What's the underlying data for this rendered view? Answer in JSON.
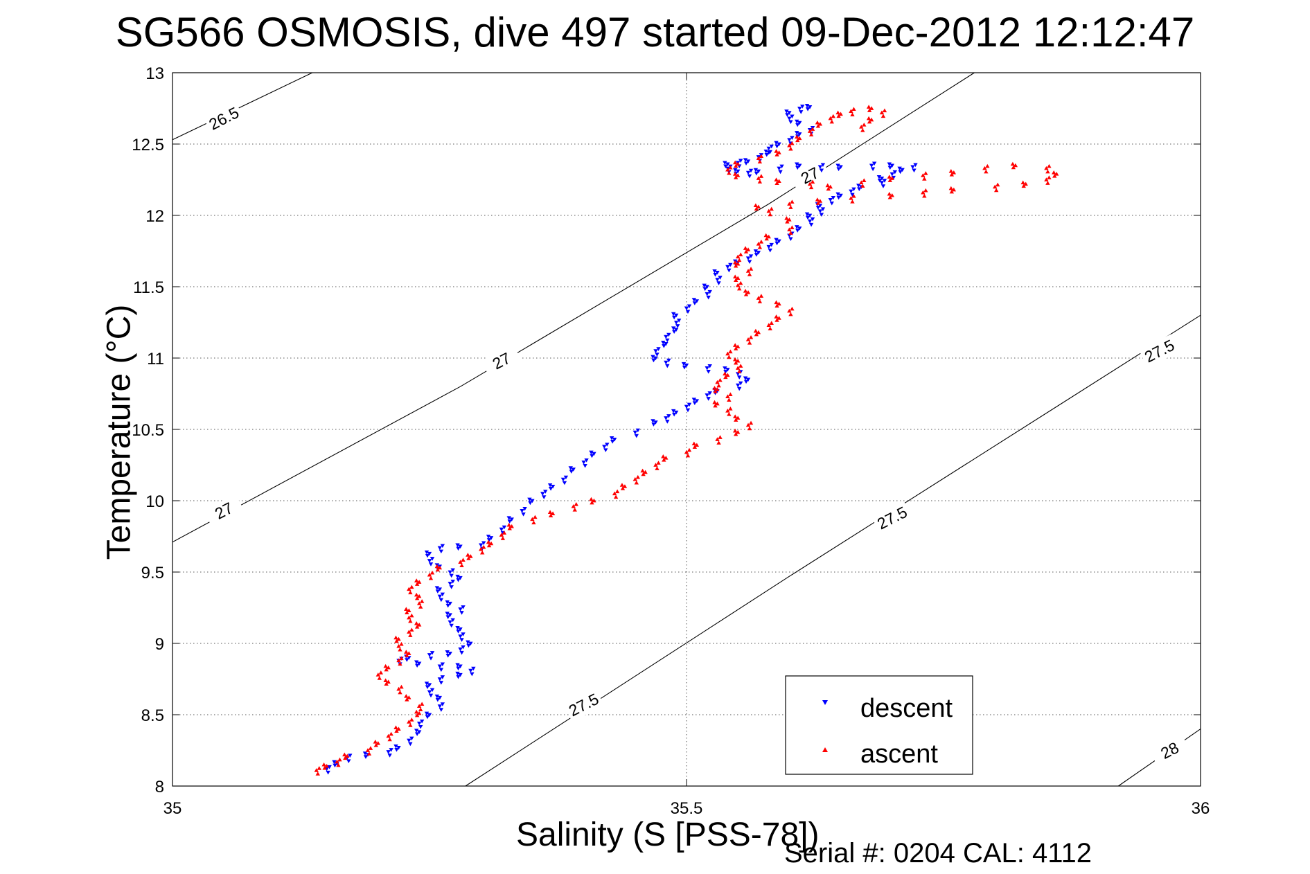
{
  "chart_data": {
    "type": "scatter",
    "title": "SG566 OSMOSIS, dive 497 started 09-Dec-2012 12:12:47",
    "xlabel": "Salinity (S [PSS-78])",
    "ylabel": "Temperature (°C)",
    "footer": "Serial #: 0204  CAL: 4112",
    "xlim": [
      35,
      36
    ],
    "ylim": [
      8,
      13
    ],
    "x_ticks": [
      35,
      35.5,
      36
    ],
    "x_tick_labels": [
      "35",
      "35.5",
      "36"
    ],
    "y_ticks": [
      8,
      8.5,
      9,
      9.5,
      10,
      10.5,
      11,
      11.5,
      12,
      12.5,
      13
    ],
    "y_tick_labels": [
      "8",
      "8.5",
      "9",
      "9.5",
      "10",
      "10.5",
      "11",
      "11.5",
      "12",
      "12.5",
      "13"
    ],
    "grid": true,
    "legend_position": "bottom-right",
    "isopycnals": [
      {
        "label": "26.5",
        "points": [
          [
            35.0,
            12.53
          ],
          [
            35.136,
            13.0
          ]
        ],
        "label_positions": [
          [
            35.05,
            12.68
          ]
        ]
      },
      {
        "label": "27",
        "points": [
          [
            35.0,
            9.71
          ],
          [
            35.28,
            10.8
          ],
          [
            35.58,
            12.08
          ],
          [
            35.78,
            13.0
          ]
        ],
        "label_positions": [
          [
            35.05,
            9.93
          ],
          [
            35.32,
            10.98
          ],
          [
            35.62,
            12.28
          ]
        ]
      },
      {
        "label": "27.5",
        "points": [
          [
            35.285,
            8.0
          ],
          [
            35.6,
            9.47
          ],
          [
            36.0,
            11.3
          ]
        ],
        "label_positions": [
          [
            35.4,
            8.57
          ],
          [
            35.7,
            9.88
          ],
          [
            35.96,
            11.05
          ]
        ]
      },
      {
        "label": "28",
        "points": [
          [
            35.92,
            8.0
          ],
          [
            36.0,
            8.4
          ]
        ],
        "label_positions": [
          [
            35.97,
            8.25
          ]
        ]
      }
    ],
    "series": [
      {
        "name": "descent",
        "color": "#0000ff",
        "marker": "triangle-down",
        "points": [
          [
            35.62,
            12.76
          ],
          [
            35.61,
            12.75
          ],
          [
            35.6,
            12.72
          ],
          [
            35.6,
            12.68
          ],
          [
            35.61,
            12.65
          ],
          [
            35.62,
            12.6
          ],
          [
            35.61,
            12.57
          ],
          [
            35.6,
            12.53
          ],
          [
            35.59,
            12.5
          ],
          [
            35.58,
            12.47
          ],
          [
            35.58,
            12.44
          ],
          [
            35.57,
            12.41
          ],
          [
            35.56,
            12.38
          ],
          [
            35.55,
            12.37
          ],
          [
            35.54,
            12.36
          ],
          [
            35.54,
            12.33
          ],
          [
            35.55,
            12.31
          ],
          [
            35.56,
            12.3
          ],
          [
            35.57,
            12.31
          ],
          [
            35.59,
            12.33
          ],
          [
            35.61,
            12.35
          ],
          [
            35.63,
            12.34
          ],
          [
            35.65,
            12.34
          ],
          [
            35.68,
            12.35
          ],
          [
            35.7,
            12.35
          ],
          [
            35.72,
            12.34
          ],
          [
            35.71,
            12.32
          ],
          [
            35.7,
            12.29
          ],
          [
            35.69,
            12.26
          ],
          [
            35.69,
            12.23
          ],
          [
            35.67,
            12.2
          ],
          [
            35.66,
            12.17
          ],
          [
            35.65,
            12.14
          ],
          [
            35.64,
            12.11
          ],
          [
            35.63,
            12.07
          ],
          [
            35.63,
            12.03
          ],
          [
            35.62,
            12.0
          ],
          [
            35.62,
            11.96
          ],
          [
            35.61,
            11.91
          ],
          [
            35.6,
            11.86
          ],
          [
            35.59,
            11.82
          ],
          [
            35.58,
            11.78
          ],
          [
            35.57,
            11.74
          ],
          [
            35.56,
            11.7
          ],
          [
            35.55,
            11.67
          ],
          [
            35.54,
            11.64
          ],
          [
            35.53,
            11.6
          ],
          [
            35.53,
            11.55
          ],
          [
            35.52,
            11.5
          ],
          [
            35.52,
            11.45
          ],
          [
            35.51,
            11.4
          ],
          [
            35.5,
            11.35
          ],
          [
            35.49,
            11.3
          ],
          [
            35.49,
            11.25
          ],
          [
            35.49,
            11.2
          ],
          [
            35.48,
            11.15
          ],
          [
            35.48,
            11.1
          ],
          [
            35.47,
            11.05
          ],
          [
            35.47,
            11.0
          ],
          [
            35.48,
            10.97
          ],
          [
            35.5,
            10.95
          ],
          [
            35.52,
            10.93
          ],
          [
            35.54,
            10.92
          ],
          [
            35.55,
            10.89
          ],
          [
            35.56,
            10.85
          ],
          [
            35.55,
            10.81
          ],
          [
            35.53,
            10.77
          ],
          [
            35.52,
            10.74
          ],
          [
            35.51,
            10.7
          ],
          [
            35.5,
            10.66
          ],
          [
            35.49,
            10.62
          ],
          [
            35.48,
            10.58
          ],
          [
            35.47,
            10.55
          ],
          [
            35.45,
            10.48
          ],
          [
            35.43,
            10.43
          ],
          [
            35.42,
            10.38
          ],
          [
            35.41,
            10.33
          ],
          [
            35.4,
            10.27
          ],
          [
            35.39,
            10.22
          ],
          [
            35.38,
            10.15
          ],
          [
            35.37,
            10.1
          ],
          [
            35.36,
            10.05
          ],
          [
            35.35,
            10.0
          ],
          [
            35.34,
            9.93
          ],
          [
            35.33,
            9.87
          ],
          [
            35.32,
            9.8
          ],
          [
            35.31,
            9.74
          ],
          [
            35.3,
            9.69
          ],
          [
            35.28,
            9.68
          ],
          [
            35.26,
            9.67
          ],
          [
            35.25,
            9.63
          ],
          [
            35.25,
            9.58
          ],
          [
            35.26,
            9.54
          ],
          [
            35.27,
            9.5
          ],
          [
            35.28,
            9.46
          ],
          [
            35.27,
            9.42
          ],
          [
            35.26,
            9.38
          ],
          [
            35.26,
            9.33
          ],
          [
            35.27,
            9.28
          ],
          [
            35.28,
            9.24
          ],
          [
            35.27,
            9.2
          ],
          [
            35.27,
            9.15
          ],
          [
            35.28,
            9.1
          ],
          [
            35.28,
            9.05
          ],
          [
            35.29,
            9.0
          ],
          [
            35.28,
            8.96
          ],
          [
            35.27,
            8.93
          ],
          [
            35.25,
            8.92
          ],
          [
            35.23,
            8.9
          ],
          [
            35.22,
            8.88
          ],
          [
            35.24,
            8.86
          ],
          [
            35.26,
            8.84
          ],
          [
            35.28,
            8.84
          ],
          [
            35.29,
            8.81
          ],
          [
            35.28,
            8.78
          ],
          [
            35.26,
            8.75
          ],
          [
            35.25,
            8.71
          ],
          [
            35.25,
            8.66
          ],
          [
            35.26,
            8.62
          ],
          [
            35.26,
            8.56
          ],
          [
            35.25,
            8.5
          ],
          [
            35.24,
            8.44
          ],
          [
            35.24,
            8.38
          ],
          [
            35.23,
            8.32
          ],
          [
            35.22,
            8.27
          ],
          [
            35.21,
            8.24
          ],
          [
            35.19,
            8.22
          ],
          [
            35.17,
            8.2
          ],
          [
            35.16,
            8.16
          ],
          [
            35.15,
            8.12
          ]
        ]
      },
      {
        "name": "ascent",
        "color": "#ff0000",
        "marker": "triangle-up",
        "points": [
          [
            35.14,
            8.11
          ],
          [
            35.15,
            8.14
          ],
          [
            35.16,
            8.17
          ],
          [
            35.17,
            8.21
          ],
          [
            35.19,
            8.25
          ],
          [
            35.2,
            8.3
          ],
          [
            35.21,
            8.35
          ],
          [
            35.22,
            8.4
          ],
          [
            35.23,
            8.45
          ],
          [
            35.24,
            8.51
          ],
          [
            35.24,
            8.56
          ],
          [
            35.23,
            8.62
          ],
          [
            35.22,
            8.68
          ],
          [
            35.21,
            8.73
          ],
          [
            35.2,
            8.78
          ],
          [
            35.21,
            8.83
          ],
          [
            35.22,
            8.88
          ],
          [
            35.23,
            8.93
          ],
          [
            35.22,
            8.98
          ],
          [
            35.22,
            9.03
          ],
          [
            35.23,
            9.08
          ],
          [
            35.24,
            9.13
          ],
          [
            35.23,
            9.18
          ],
          [
            35.23,
            9.23
          ],
          [
            35.24,
            9.28
          ],
          [
            35.24,
            9.33
          ],
          [
            35.23,
            9.38
          ],
          [
            35.24,
            9.43
          ],
          [
            35.25,
            9.48
          ],
          [
            35.26,
            9.53
          ],
          [
            35.28,
            9.57
          ],
          [
            35.29,
            9.61
          ],
          [
            35.3,
            9.66
          ],
          [
            35.31,
            9.7
          ],
          [
            35.32,
            9.76
          ],
          [
            35.33,
            9.82
          ],
          [
            35.35,
            9.87
          ],
          [
            35.37,
            9.91
          ],
          [
            35.39,
            9.96
          ],
          [
            35.41,
            10.0
          ],
          [
            35.43,
            10.05
          ],
          [
            35.44,
            10.1
          ],
          [
            35.45,
            10.15
          ],
          [
            35.46,
            10.2
          ],
          [
            35.47,
            10.25
          ],
          [
            35.48,
            10.3
          ],
          [
            35.5,
            10.34
          ],
          [
            35.51,
            10.39
          ],
          [
            35.53,
            10.43
          ],
          [
            35.55,
            10.48
          ],
          [
            35.56,
            10.53
          ],
          [
            35.55,
            10.58
          ],
          [
            35.54,
            10.63
          ],
          [
            35.53,
            10.68
          ],
          [
            35.54,
            10.73
          ],
          [
            35.53,
            10.78
          ],
          [
            35.53,
            10.83
          ],
          [
            35.54,
            10.88
          ],
          [
            35.55,
            10.93
          ],
          [
            35.55,
            10.98
          ],
          [
            35.54,
            11.03
          ],
          [
            35.55,
            11.08
          ],
          [
            35.56,
            11.13
          ],
          [
            35.57,
            11.18
          ],
          [
            35.58,
            11.23
          ],
          [
            35.59,
            11.28
          ],
          [
            35.6,
            11.33
          ],
          [
            35.59,
            11.38
          ],
          [
            35.57,
            11.42
          ],
          [
            35.56,
            11.46
          ],
          [
            35.55,
            11.51
          ],
          [
            35.55,
            11.56
          ],
          [
            35.56,
            11.61
          ],
          [
            35.55,
            11.66
          ],
          [
            35.55,
            11.71
          ],
          [
            35.56,
            11.76
          ],
          [
            35.57,
            11.8
          ],
          [
            35.58,
            11.85
          ],
          [
            35.6,
            11.9
          ],
          [
            35.6,
            11.97
          ],
          [
            35.58,
            12.03
          ],
          [
            35.57,
            12.06
          ],
          [
            35.6,
            12.08
          ],
          [
            35.63,
            12.1
          ],
          [
            35.66,
            12.12
          ],
          [
            35.7,
            12.14
          ],
          [
            35.73,
            12.16
          ],
          [
            35.76,
            12.18
          ],
          [
            35.8,
            12.2
          ],
          [
            35.83,
            12.22
          ],
          [
            35.85,
            12.25
          ],
          [
            35.86,
            12.29
          ],
          [
            35.85,
            12.33
          ],
          [
            35.82,
            12.35
          ],
          [
            35.79,
            12.33
          ],
          [
            35.76,
            12.3
          ],
          [
            35.73,
            12.28
          ],
          [
            35.7,
            12.26
          ],
          [
            35.67,
            12.23
          ],
          [
            35.64,
            12.2
          ],
          [
            35.62,
            12.22
          ],
          [
            35.59,
            12.24
          ],
          [
            35.57,
            12.26
          ],
          [
            35.55,
            12.28
          ],
          [
            35.54,
            12.32
          ],
          [
            35.55,
            12.36
          ],
          [
            35.57,
            12.4
          ],
          [
            35.59,
            12.44
          ],
          [
            35.6,
            12.49
          ],
          [
            35.61,
            12.54
          ],
          [
            35.62,
            12.59
          ],
          [
            35.63,
            12.64
          ],
          [
            35.64,
            12.68
          ],
          [
            35.65,
            12.71
          ],
          [
            35.66,
            12.73
          ],
          [
            35.68,
            12.75
          ],
          [
            35.69,
            12.72
          ],
          [
            35.68,
            12.67
          ],
          [
            35.67,
            12.62
          ]
        ]
      }
    ]
  }
}
